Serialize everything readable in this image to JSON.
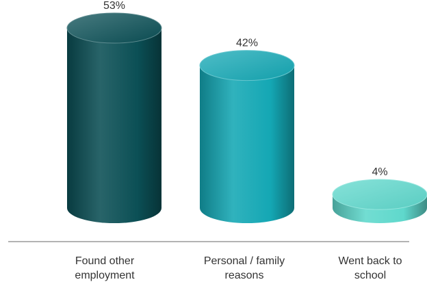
{
  "chart_data": {
    "type": "bar",
    "style": "3d-cylinder",
    "categories": [
      [
        "Found other",
        "employment"
      ],
      [
        "Personal / family",
        "reasons"
      ],
      [
        "Went back to",
        "school"
      ]
    ],
    "values": [
      53,
      42,
      4
    ],
    "value_labels": [
      "53%",
      "42%",
      "4%"
    ],
    "ylim": [
      0,
      53
    ],
    "grid": false,
    "legend": "none",
    "colors": [
      "#0b4f55",
      "#14a7b4",
      "#5fd8cc"
    ]
  }
}
